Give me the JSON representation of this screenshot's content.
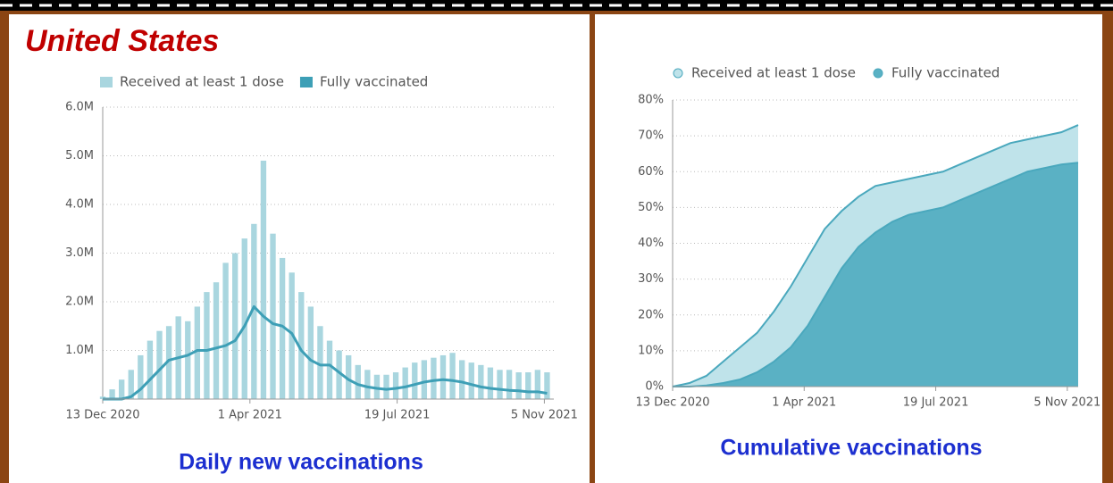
{
  "heading": "United States",
  "chart_data": [
    {
      "type": "bar",
      "title": "Daily new vaccinations",
      "x": [
        "2020-12-13",
        "2020-12-20",
        "2020-12-27",
        "2021-01-03",
        "2021-01-10",
        "2021-01-17",
        "2021-01-24",
        "2021-01-31",
        "2021-02-07",
        "2021-02-14",
        "2021-02-21",
        "2021-02-28",
        "2021-03-07",
        "2021-03-14",
        "2021-03-21",
        "2021-03-28",
        "2021-04-04",
        "2021-04-11",
        "2021-04-18",
        "2021-04-25",
        "2021-05-02",
        "2021-05-09",
        "2021-05-16",
        "2021-05-23",
        "2021-05-30",
        "2021-06-06",
        "2021-06-13",
        "2021-06-20",
        "2021-06-27",
        "2021-07-04",
        "2021-07-11",
        "2021-07-18",
        "2021-07-25",
        "2021-08-01",
        "2021-08-08",
        "2021-08-15",
        "2021-08-22",
        "2021-08-29",
        "2021-09-05",
        "2021-09-12",
        "2021-09-19",
        "2021-09-26",
        "2021-10-03",
        "2021-10-10",
        "2021-10-17",
        "2021-10-24",
        "2021-10-31",
        "2021-11-07"
      ],
      "series": [
        {
          "name": "Received at least 1 dose",
          "color": "#a9d6df",
          "values": [
            50000,
            200000,
            400000,
            600000,
            900000,
            1200000,
            1400000,
            1500000,
            1700000,
            1600000,
            1900000,
            2200000,
            2400000,
            2800000,
            3000000,
            3300000,
            3600000,
            4900000,
            3400000,
            2900000,
            2600000,
            2200000,
            1900000,
            1500000,
            1200000,
            1000000,
            900000,
            700000,
            600000,
            500000,
            500000,
            550000,
            650000,
            750000,
            800000,
            850000,
            900000,
            950000,
            800000,
            750000,
            700000,
            650000,
            600000,
            600000,
            550000,
            550000,
            600000,
            550000
          ]
        },
        {
          "name": "Fully vaccinated",
          "color": "#3d9fb6",
          "values": [
            0,
            0,
            0,
            50000,
            200000,
            400000,
            600000,
            800000,
            850000,
            900000,
            1000000,
            1000000,
            1050000,
            1100000,
            1200000,
            1500000,
            1900000,
            1700000,
            1550000,
            1500000,
            1350000,
            1000000,
            800000,
            700000,
            700000,
            550000,
            400000,
            300000,
            250000,
            220000,
            200000,
            220000,
            250000,
            300000,
            350000,
            380000,
            400000,
            380000,
            350000,
            300000,
            250000,
            220000,
            200000,
            180000,
            170000,
            150000,
            150000,
            120000
          ]
        }
      ],
      "xlim": [
        "2020-12-13",
        "2021-11-12"
      ],
      "xticks": [
        {
          "value": "2020-12-13",
          "label": "13 Dec 2020"
        },
        {
          "value": "2021-04-01",
          "label": "1 Apr 2021"
        },
        {
          "value": "2021-07-19",
          "label": "19 Jul 2021"
        },
        {
          "value": "2021-11-05",
          "label": "5 Nov 2021"
        }
      ],
      "ylim": [
        0,
        6000000
      ],
      "yticks": [
        {
          "value": 1000000,
          "label": "1.0M"
        },
        {
          "value": 2000000,
          "label": "2.0M"
        },
        {
          "value": 3000000,
          "label": "3.0M"
        },
        {
          "value": 4000000,
          "label": "4.0M"
        },
        {
          "value": 5000000,
          "label": "5.0M"
        },
        {
          "value": 6000000,
          "label": "6.0M"
        }
      ],
      "grid": true
    },
    {
      "type": "area",
      "title": "Cumulative vaccinations",
      "x": [
        "2020-12-13",
        "2020-12-27",
        "2021-01-10",
        "2021-01-24",
        "2021-02-07",
        "2021-02-21",
        "2021-03-07",
        "2021-03-21",
        "2021-04-04",
        "2021-04-18",
        "2021-05-02",
        "2021-05-16",
        "2021-05-30",
        "2021-06-13",
        "2021-06-27",
        "2021-07-11",
        "2021-07-25",
        "2021-08-08",
        "2021-08-22",
        "2021-09-05",
        "2021-09-19",
        "2021-10-03",
        "2021-10-17",
        "2021-10-31",
        "2021-11-14"
      ],
      "series": [
        {
          "name": "Received at least 1 dose",
          "color": "#bfe3ea",
          "values": [
            0,
            1,
            3,
            7,
            11,
            15,
            21,
            28,
            36,
            44,
            49,
            53,
            56,
            57,
            58,
            59,
            60,
            62,
            64,
            66,
            68,
            69,
            70,
            71,
            73
          ]
        },
        {
          "name": "Fully vaccinated",
          "color": "#5ab1c4",
          "values": [
            0,
            0,
            0.3,
            1,
            2,
            4,
            7,
            11,
            17,
            25,
            33,
            39,
            43,
            46,
            48,
            49,
            50,
            52,
            54,
            56,
            58,
            60,
            61,
            62,
            62.5
          ]
        }
      ],
      "xlim": [
        "2020-12-13",
        "2021-11-14"
      ],
      "xticks": [
        {
          "value": "2020-12-13",
          "label": "13 Dec 2020"
        },
        {
          "value": "2021-04-01",
          "label": "1 Apr 2021"
        },
        {
          "value": "2021-07-19",
          "label": "19 Jul 2021"
        },
        {
          "value": "2021-11-05",
          "label": "5 Nov 2021"
        }
      ],
      "ylim": [
        0,
        80
      ],
      "yticks": [
        {
          "value": 0,
          "label": "0%"
        },
        {
          "value": 10,
          "label": "10%"
        },
        {
          "value": 20,
          "label": "20%"
        },
        {
          "value": 30,
          "label": "30%"
        },
        {
          "value": 40,
          "label": "40%"
        },
        {
          "value": 50,
          "label": "50%"
        },
        {
          "value": 60,
          "label": "60%"
        },
        {
          "value": 70,
          "label": "70%"
        },
        {
          "value": 80,
          "label": "80%"
        }
      ],
      "grid": true
    }
  ]
}
